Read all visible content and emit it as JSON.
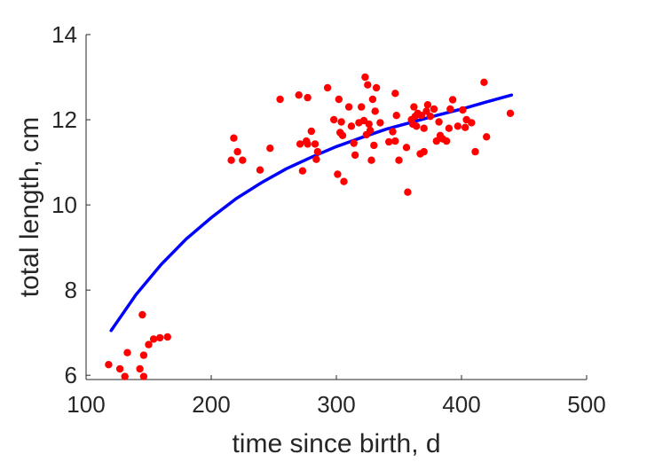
{
  "chart_data": {
    "type": "scatter",
    "title": "",
    "xlabel": "time since birth, d",
    "ylabel": "total length, cm",
    "xlim": [
      100,
      500
    ],
    "ylim": [
      5.9,
      14
    ],
    "xticks": [
      100,
      200,
      300,
      400,
      500
    ],
    "yticks": [
      6,
      8,
      10,
      12,
      14
    ],
    "grid": false,
    "colors": {
      "points": "#ff0000",
      "curve": "#0000ff",
      "axis": "#262626"
    },
    "series": [
      {
        "type": "scatter",
        "points": [
          [
            118,
            6.25
          ],
          [
            127,
            6.15
          ],
          [
            131,
            5.97
          ],
          [
            133,
            6.53
          ],
          [
            143,
            6.15
          ],
          [
            145,
            7.42
          ],
          [
            146,
            5.97
          ],
          [
            146,
            6.47
          ],
          [
            150,
            6.72
          ],
          [
            154,
            6.85
          ],
          [
            159,
            6.88
          ],
          [
            165,
            6.9
          ],
          [
            216,
            11.05
          ],
          [
            218,
            11.57
          ],
          [
            221,
            11.25
          ],
          [
            225,
            11.05
          ],
          [
            239,
            10.82
          ],
          [
            247,
            11.33
          ],
          [
            255,
            12.48
          ],
          [
            270,
            12.58
          ],
          [
            271,
            11.43
          ],
          [
            273,
            10.8
          ],
          [
            276,
            11.5
          ],
          [
            277,
            12.52
          ],
          [
            277,
            11.43
          ],
          [
            280,
            11.73
          ],
          [
            283,
            11.43
          ],
          [
            284,
            11.07
          ],
          [
            285,
            11.25
          ],
          [
            293,
            12.75
          ],
          [
            298,
            12.0
          ],
          [
            301,
            10.72
          ],
          [
            302,
            12.48
          ],
          [
            303,
            11.7
          ],
          [
            304,
            11.95
          ],
          [
            305,
            11.63
          ],
          [
            306,
            10.55
          ],
          [
            310,
            12.3
          ],
          [
            312,
            11.85
          ],
          [
            314,
            11.45
          ],
          [
            315,
            11.17
          ],
          [
            318,
            11.93
          ],
          [
            320,
            12.3
          ],
          [
            322,
            11.98
          ],
          [
            323,
            13.0
          ],
          [
            324,
            11.65
          ],
          [
            325,
            12.82
          ],
          [
            326,
            11.9
          ],
          [
            327,
            11.75
          ],
          [
            328,
            11.05
          ],
          [
            329,
            12.48
          ],
          [
            330,
            11.4
          ],
          [
            331,
            12.2
          ],
          [
            332,
            12.75
          ],
          [
            335,
            11.93
          ],
          [
            342,
            11.48
          ],
          [
            345,
            11.72
          ],
          [
            347,
            12.62
          ],
          [
            347,
            11.5
          ],
          [
            348,
            12.1
          ],
          [
            350,
            11.05
          ],
          [
            356,
            11.35
          ],
          [
            357,
            10.3
          ],
          [
            360,
            12.0
          ],
          [
            361,
            11.9
          ],
          [
            362,
            12.3
          ],
          [
            363,
            12.08
          ],
          [
            364,
            11.85
          ],
          [
            365,
            12.15
          ],
          [
            367,
            11.2
          ],
          [
            368,
            12.1
          ],
          [
            370,
            11.25
          ],
          [
            370,
            11.8
          ],
          [
            372,
            12.2
          ],
          [
            373,
            12.35
          ],
          [
            375,
            12.08
          ],
          [
            378,
            12.25
          ],
          [
            380,
            11.5
          ],
          [
            382,
            11.95
          ],
          [
            383,
            11.63
          ],
          [
            385,
            11.55
          ],
          [
            388,
            11.5
          ],
          [
            390,
            11.8
          ],
          [
            391,
            12.25
          ],
          [
            393,
            12.47
          ],
          [
            397,
            11.85
          ],
          [
            401,
            12.23
          ],
          [
            403,
            11.82
          ],
          [
            404,
            12.0
          ],
          [
            408,
            11.93
          ],
          [
            411,
            11.25
          ],
          [
            418,
            12.88
          ],
          [
            420,
            11.6
          ],
          [
            439,
            12.15
          ]
        ]
      },
      {
        "type": "line",
        "x": [
          120,
          140,
          160,
          180,
          200,
          220,
          240,
          260,
          280,
          300,
          320,
          340,
          360,
          380,
          400,
          420,
          440
        ],
        "y": [
          7.05,
          7.9,
          8.6,
          9.2,
          9.7,
          10.15,
          10.52,
          10.85,
          11.12,
          11.37,
          11.58,
          11.78,
          11.94,
          12.1,
          12.25,
          12.42,
          12.58
        ]
      }
    ]
  }
}
